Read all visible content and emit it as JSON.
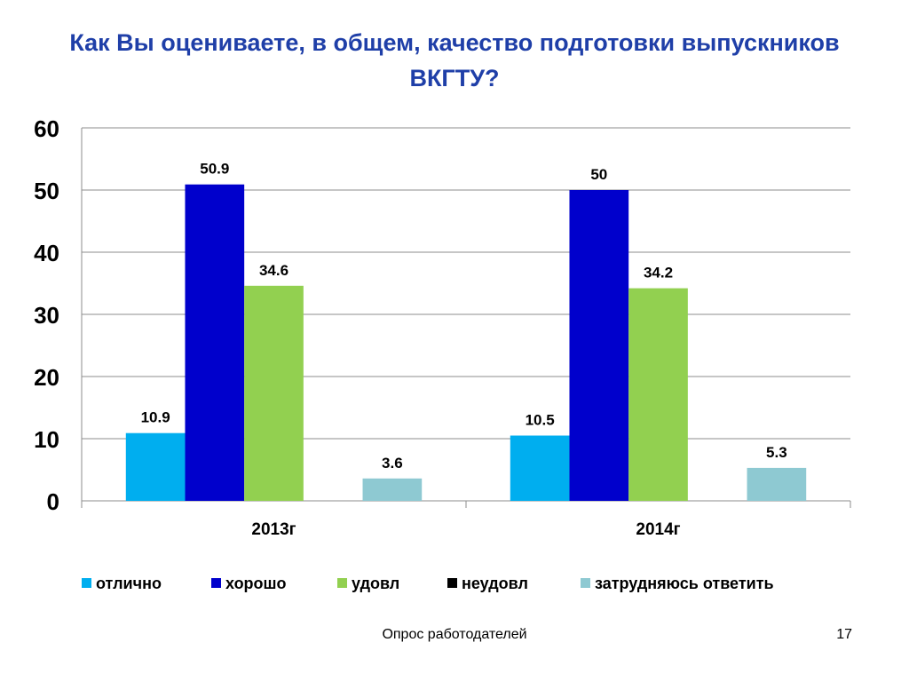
{
  "slide": {
    "title": "Как Вы оцениваете, в общем, качество подготовки выпускников ВКГТУ?",
    "footer": "Опрос работодателей",
    "page_number": "17"
  },
  "chart_data": {
    "type": "bar",
    "categories": [
      "2013г",
      "2014г"
    ],
    "series": [
      {
        "name": "отлично",
        "values": [
          10.9,
          10.5
        ],
        "color": "#00aeef"
      },
      {
        "name": "хорошо",
        "values": [
          50.9,
          50
        ],
        "color": "#0000cc"
      },
      {
        "name": "удовл",
        "values": [
          34.6,
          34.2
        ],
        "color": "#92d050"
      },
      {
        "name": "неудовл",
        "values": [
          0,
          0
        ],
        "color": "#000000"
      },
      {
        "name": "затрудняюсь ответить",
        "values": [
          3.6,
          5.3
        ],
        "color": "#8ec9d2"
      }
    ],
    "data_labels": [
      [
        "10.9",
        "10.5"
      ],
      [
        "50.9",
        "50"
      ],
      [
        "34.6",
        "34.2"
      ],
      [
        "",
        ""
      ],
      [
        "3.6",
        "5.3"
      ]
    ],
    "y_ticks": [
      "0",
      "10",
      "20",
      "30",
      "40",
      "50",
      "60"
    ],
    "ylim": [
      0,
      60
    ],
    "grid": true,
    "legend_position": "bottom"
  }
}
